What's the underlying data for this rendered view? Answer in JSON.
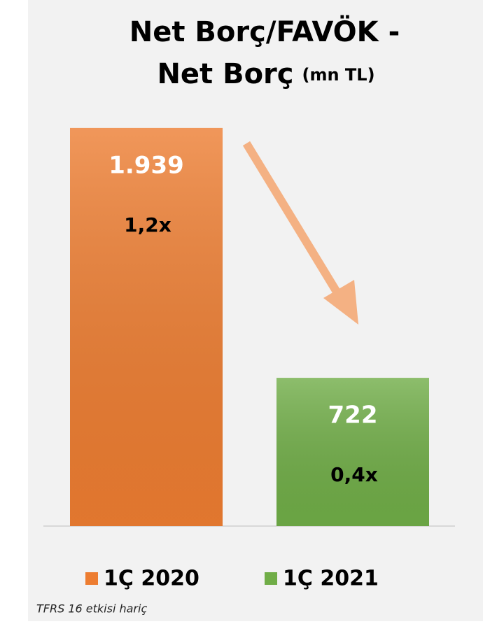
{
  "chart_data": {
    "type": "bar",
    "title": [
      "Net Borç/FAVÖK -",
      "Net Borç"
    ],
    "title_unit": "(mn TL)",
    "series": [
      {
        "name": "1Ç 2020",
        "color": "#ed7d31",
        "values": [
          1939
        ],
        "value_labels": [
          "1.939"
        ],
        "ratios": [
          1.2
        ],
        "ratio_labels": [
          "1,2x"
        ]
      },
      {
        "name": "1Ç 2021",
        "color": "#70ad47",
        "values": [
          722
        ],
        "value_labels": [
          "722"
        ],
        "ratios": [
          0.4
        ],
        "ratio_labels": [
          "0,4x"
        ]
      }
    ],
    "ylim": [
      0,
      2000
    ],
    "footnote": "TFRS 16 etkisi hariç"
  }
}
